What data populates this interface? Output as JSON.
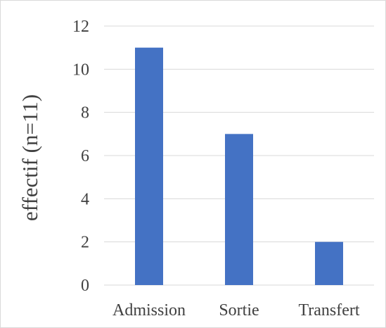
{
  "chart_data": {
    "type": "bar",
    "categories": [
      "Admission",
      "Sortie",
      "Transfert"
    ],
    "values": [
      11,
      7,
      2
    ],
    "title": "",
    "xlabel": "",
    "ylabel": "effectif (n=11)",
    "ylim": [
      0,
      12
    ],
    "yticks": [
      0,
      2,
      4,
      6,
      8,
      10,
      12
    ],
    "grid": true,
    "legend": "none",
    "colors": {
      "bar": "#4472C4",
      "grid": "#d9d9d9",
      "text": "#404040"
    }
  }
}
